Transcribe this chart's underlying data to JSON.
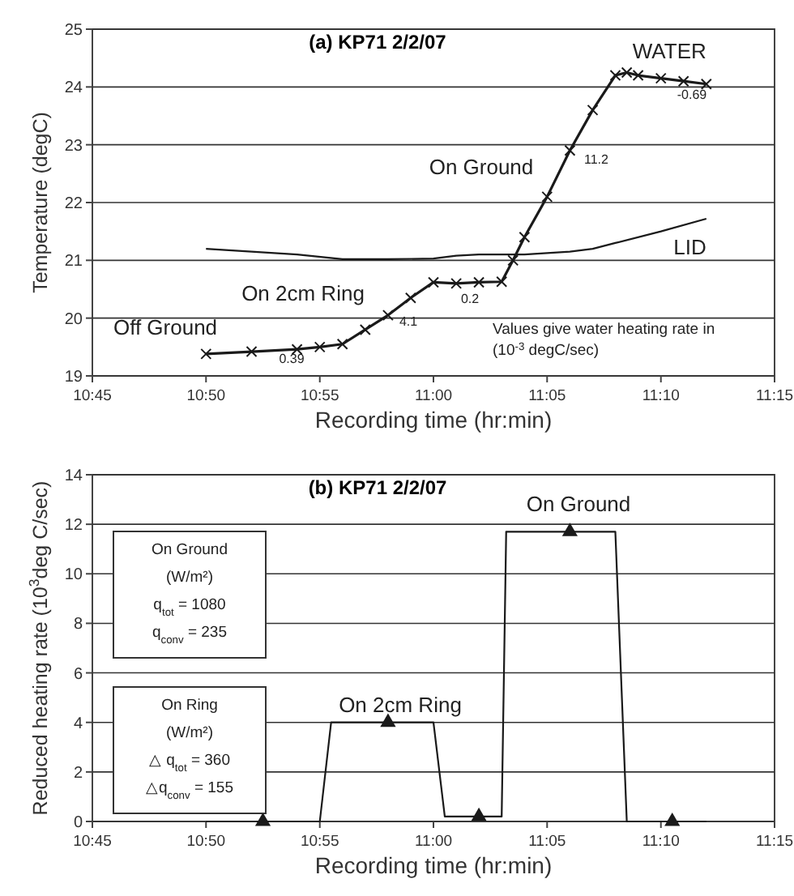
{
  "chart_data": [
    {
      "type": "line",
      "title": "(a)  KP71    2/2/07",
      "xlabel": "Recording time (hr:min)",
      "ylabel": "Temperature (degC)",
      "xlim": [
        10.75,
        11.25
      ],
      "xticks": [
        {
          "value": 10.75,
          "label": "10:45"
        },
        {
          "value": 10.8333,
          "label": "10:50"
        },
        {
          "value": 10.9167,
          "label": "10:55"
        },
        {
          "value": 11,
          "label": "11:00"
        },
        {
          "value": 11.0833,
          "label": "11:05"
        },
        {
          "value": 11.1667,
          "label": "11:10"
        },
        {
          "value": 11.25,
          "label": "11:15"
        }
      ],
      "ylim": [
        19,
        25
      ],
      "yticks": [
        19,
        20,
        21,
        22,
        23,
        24,
        25
      ],
      "grid": "y",
      "series": [
        {
          "name": "WATER",
          "color": "#1a1a1a",
          "marker": "cross",
          "x": [
            10.8333,
            10.8667,
            10.9,
            10.9167,
            10.9333,
            10.95,
            10.9667,
            10.9833,
            11,
            11.0167,
            11.0333,
            11.05,
            11.0583,
            11.0667,
            11.0833,
            11.1,
            11.1167,
            11.1333,
            11.1417,
            11.15,
            11.1667,
            11.1833,
            11.2
          ],
          "values": [
            19.38,
            19.42,
            19.46,
            19.5,
            19.55,
            19.8,
            20.05,
            20.35,
            20.62,
            20.6,
            20.62,
            20.63,
            21.0,
            21.4,
            22.1,
            22.9,
            23.6,
            24.2,
            24.25,
            24.2,
            24.15,
            24.1,
            24.05
          ]
        },
        {
          "name": "LID",
          "color": "#1a1a1a",
          "marker": "none",
          "x": [
            10.8333,
            10.8667,
            10.9,
            10.9333,
            10.9667,
            11,
            11.0167,
            11.0333,
            11.0667,
            11.1,
            11.1167,
            11.1333,
            11.1667,
            11.2
          ],
          "values": [
            21.2,
            21.15,
            21.1,
            21.02,
            21.02,
            21.03,
            21.08,
            21.1,
            21.1,
            21.15,
            21.2,
            21.3,
            21.5,
            21.72
          ]
        }
      ],
      "annotations": [
        "Off Ground",
        "On 2cm Ring",
        "On Ground",
        "0.39",
        "4.1",
        "0.2",
        "11.2",
        "-0.69",
        "Values give water heating rate in\n(10$^{-3}$  degC/sec)"
      ]
    },
    {
      "type": "line",
      "title": "(b)   KP71    2/2/07",
      "xlabel": "Recording time (hr:min)",
      "ylabel": "Reduced heating rate (10$^{3}$deg C/sec)",
      "xlim": [
        10.75,
        11.25
      ],
      "xticks": [
        {
          "value": 10.75,
          "label": "10:45"
        },
        {
          "value": 10.8333,
          "label": "10:50"
        },
        {
          "value": 10.9167,
          "label": "10:55"
        },
        {
          "value": 11,
          "label": "11:00"
        },
        {
          "value": 11.0833,
          "label": "11:05"
        },
        {
          "value": 11.1667,
          "label": "11:10"
        },
        {
          "value": 11.25,
          "label": "11:15"
        }
      ],
      "ylim": [
        0,
        14
      ],
      "yticks": [
        0,
        2,
        4,
        6,
        8,
        10,
        12,
        14
      ],
      "grid": "y",
      "series": [
        {
          "color": "#1a1a1a",
          "marker": "none",
          "x": [
            10.8333,
            10.9167,
            10.925,
            11,
            11.0083,
            11.05,
            11.0533,
            11.1333,
            11.1417,
            11.2
          ],
          "values": [
            0,
            0,
            4,
            4,
            0.2,
            0.2,
            11.7,
            11.7,
            0,
            0
          ]
        },
        {
          "type": "scatter",
          "color": "#1a1a1a",
          "marker": "triangle",
          "x": [
            10.875,
            10.9667,
            11.0333,
            11.1,
            11.175
          ],
          "values": [
            0,
            4,
            0.2,
            11.7,
            0
          ]
        }
      ],
      "annotations": [
        "On Ground",
        "On 2cm Ring",
        "On Ground\n(W/m²)\nq$_{tot}$ = 1080\nq$_{conv}$ = 235",
        "On Ring\n(W/m²)\n△ q$_{tot}$ = 360\n△q$_{conv}$ = 155"
      ]
    }
  ]
}
